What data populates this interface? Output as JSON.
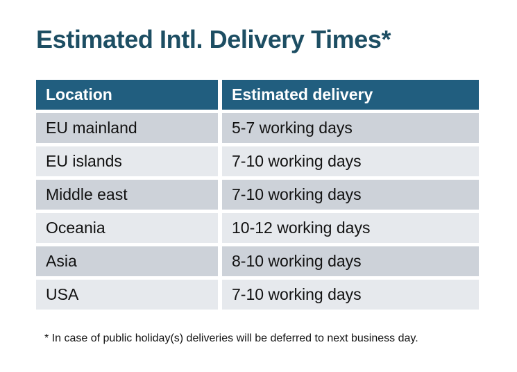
{
  "title": "Estimated Intl. Delivery Times*",
  "table": {
    "headers": [
      "Location",
      "Estimated delivery"
    ],
    "rows": [
      {
        "location": "EU mainland",
        "delivery": "5-7 working days"
      },
      {
        "location": "EU islands",
        "delivery": "7-10 working days"
      },
      {
        "location": "Middle east",
        "delivery": "7-10 working days"
      },
      {
        "location": "Oceania",
        "delivery": "10-12 working days"
      },
      {
        "location": "Asia",
        "delivery": "8-10 working days"
      },
      {
        "location": "USA",
        "delivery": "7-10 working days"
      }
    ]
  },
  "footnote": "* In case of public holiday(s) deliveries will be deferred to next business day.",
  "colors": {
    "title_text": "#1d4e63",
    "header_bg": "#215e7f",
    "header_text": "#ffffff",
    "row_dark": "#cdd2d9",
    "row_light": "#e6e9ed",
    "body_text": "#111111",
    "page_bg": "#ffffff"
  },
  "chart_data": {
    "type": "table",
    "title": "Estimated Intl. Delivery Times*",
    "columns": [
      "Location",
      "Estimated delivery"
    ],
    "rows": [
      [
        "EU mainland",
        "5-7 working days"
      ],
      [
        "EU islands",
        "7-10 working days"
      ],
      [
        "Middle east",
        "7-10 working days"
      ],
      [
        "Oceania",
        "10-12 working days"
      ],
      [
        "Asia",
        "8-10 working days"
      ],
      [
        "USA",
        "7-10 working days"
      ]
    ],
    "footnote": "* In case of public holiday(s) deliveries will be deferred to next business day."
  }
}
